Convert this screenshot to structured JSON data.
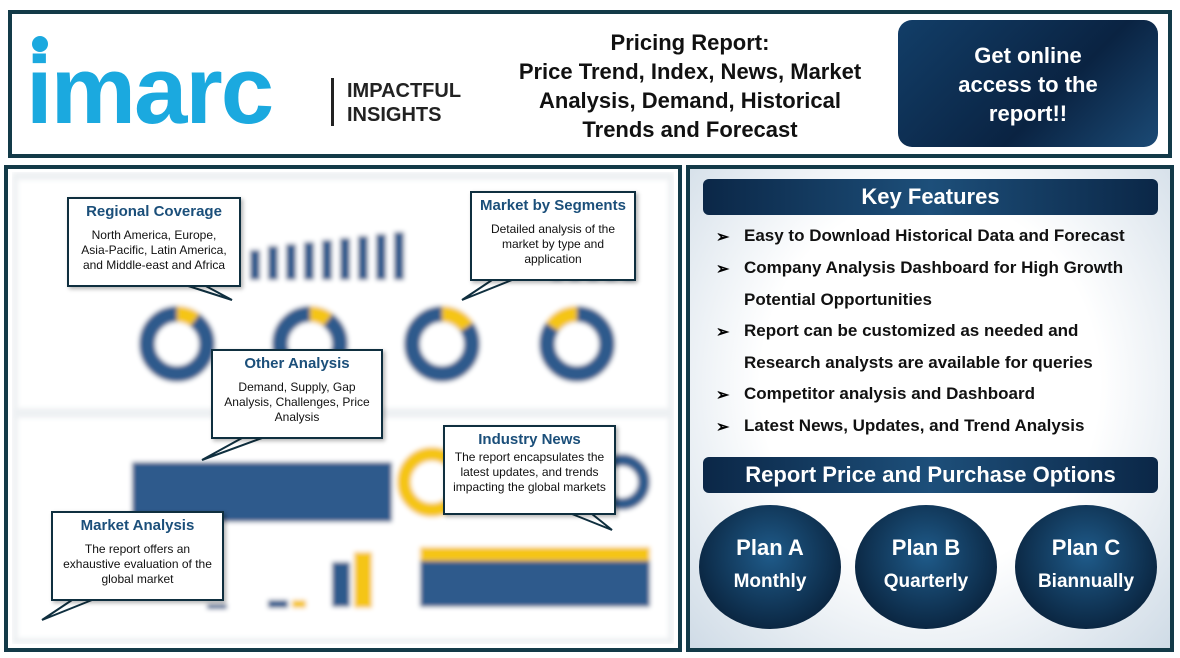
{
  "header": {
    "logo": "imarc",
    "tagline": [
      "IMPACTFUL",
      "INSIGHTS"
    ],
    "title": [
      "Pricing Report:",
      "Price Trend, Index, News, Market",
      "Analysis, Demand, Historical",
      "Trends and Forecast"
    ],
    "cta": [
      "Get online",
      "access to the",
      "report!!"
    ]
  },
  "callouts": [
    {
      "title": "Regional Coverage",
      "body": "North America, Europe, Asia-Pacific, Latin America, and Middle-east and Africa"
    },
    {
      "title": "Market by Segments",
      "body": "Detailed analysis of the market by type and application"
    },
    {
      "title": "Other Analysis",
      "body": "Demand, Supply, Gap Analysis, Challenges, Price Analysis"
    },
    {
      "title": "Industry News",
      "body": "The report encapsulates the latest updates, and trends impacting the global markets"
    },
    {
      "title": "Market Analysis",
      "body": "The report offers an exhaustive evaluation of the global market"
    }
  ],
  "key_features": {
    "title": "Key Features",
    "items": [
      "Easy to Download Historical Data and Forecast",
      "Company Analysis Dashboard for High Growth Potential Opportunities",
      "Report can be customized as needed and Research analysts are available for queries",
      "Competitor analysis and Dashboard",
      "Latest News, Updates, and Trend Analysis"
    ]
  },
  "purchase": {
    "title": "Report Price and Purchase Options",
    "plans": [
      {
        "name": "Plan A",
        "period": "Monthly"
      },
      {
        "name": "Plan B",
        "period": "Quarterly"
      },
      {
        "name": "Plan C",
        "period": "Biannually"
      }
    ]
  }
}
